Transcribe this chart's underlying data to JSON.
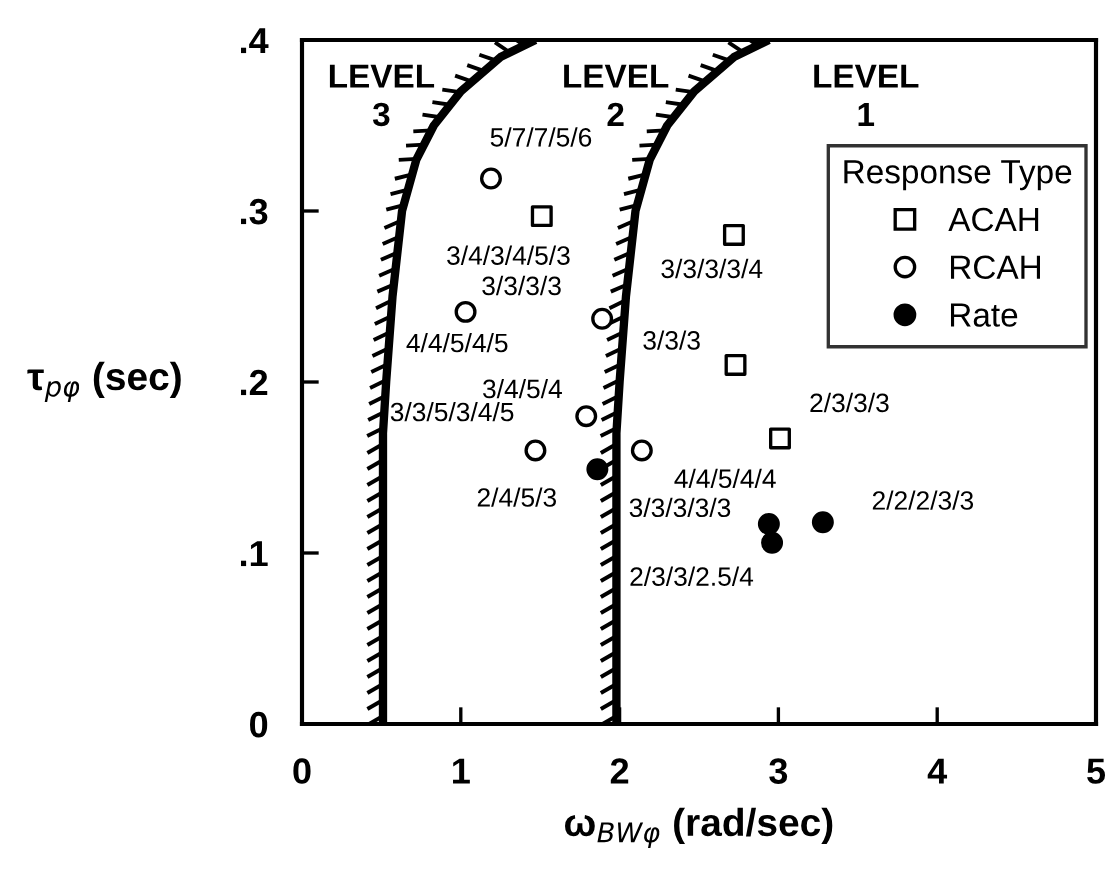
{
  "chart_data": {
    "type": "scatter",
    "xlabel": "ω$_{BWφ}$ (rad/sec)",
    "ylabel": "τ$_{pφ}$ (sec)",
    "xlim": [
      0,
      5
    ],
    "ylim": [
      0,
      0.4
    ],
    "xticks": [
      0,
      1,
      2,
      3,
      4,
      5
    ],
    "yticks": [
      {
        "value": 0,
        "label": "0"
      },
      {
        "value": 0.1,
        "label": ".1"
      },
      {
        "value": 0.2,
        "label": ".2"
      },
      {
        "value": 0.3,
        "label": ".3"
      },
      {
        "value": 0.4,
        "label": ".4"
      }
    ],
    "legend": "top right",
    "legend_title": "Response Type",
    "grid": false,
    "series": [
      {
        "name": "ACAH",
        "color": "#000000",
        "marker": "square",
        "x": [
          1.51,
          2.72,
          2.73,
          3.01
        ],
        "values": [
          0.297,
          0.286,
          0.21,
          0.167
        ]
      },
      {
        "name": "RCAH",
        "color": "#000000",
        "marker": "circle",
        "x": [
          1.19,
          1.03,
          1.89,
          1.79,
          1.47,
          2.14
        ],
        "values": [
          0.319,
          0.241,
          0.237,
          0.18,
          0.16,
          0.16
        ]
      },
      {
        "name": "Rate",
        "color": "#000000",
        "marker": "circle",
        "x": [
          1.86,
          2.94,
          2.96,
          3.28
        ],
        "values": [
          0.149,
          0.117,
          0.106,
          0.118
        ]
      },
      {
        "type": "line",
        "color": "#000000",
        "marker": "none",
        "x": [
          0.51,
          0.51,
          0.53,
          0.57,
          0.63,
          0.72,
          0.83,
          1.0,
          1.25,
          1.47
        ],
        "values": [
          0,
          0.17,
          0.2,
          0.25,
          0.3,
          0.33,
          0.35,
          0.37,
          0.39,
          0.4
        ]
      },
      {
        "type": "line",
        "color": "#000000",
        "marker": "none",
        "x": [
          1.98,
          1.98,
          2.0,
          2.04,
          2.1,
          2.19,
          2.3,
          2.47,
          2.72,
          2.94
        ],
        "values": [
          0,
          0.17,
          0.2,
          0.25,
          0.3,
          0.33,
          0.35,
          0.37,
          0.39,
          0.4
        ]
      }
    ],
    "annotations": [
      {
        "text": "5/7/7/5/6",
        "x": 1.19,
        "y": 0.319
      },
      {
        "text": "3/4/3/4/5/3",
        "x": 1.51,
        "y": 0.297
      },
      {
        "text": "4/4/5/4/5",
        "x": 1.03,
        "y": 0.241
      },
      {
        "text": "3/3/3/3",
        "x": 1.89,
        "y": 0.237
      },
      {
        "text": "3/4/5/4",
        "x": 1.79,
        "y": 0.18
      },
      {
        "text": "3/3/5/3/4/5",
        "x": 1.47,
        "y": 0.16
      },
      {
        "text": "2/4/5/3",
        "x": 1.86,
        "y": 0.149
      },
      {
        "text": "3/3/3/3/4",
        "x": 2.72,
        "y": 0.286
      },
      {
        "text": "3/3/3",
        "x": 2.73,
        "y": 0.21
      },
      {
        "text": "2/3/3/3",
        "x": 3.01,
        "y": 0.167
      },
      {
        "text": "4/4/5/4/4",
        "x": 2.14,
        "y": 0.16
      },
      {
        "text": "3/3/3/3/3",
        "x": 2.94,
        "y": 0.117
      },
      {
        "text": "2/3/3/2.5/4",
        "x": 2.96,
        "y": 0.106
      },
      {
        "text": "2/2/2/3/3",
        "x": 3.28,
        "y": 0.118
      },
      "LEVEL\n3",
      "LEVEL\n2",
      "LEVEL\n1"
    ]
  }
}
